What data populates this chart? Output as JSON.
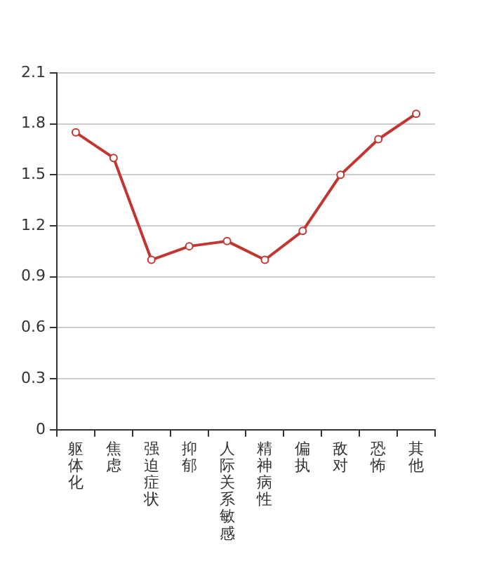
{
  "chart_data": {
    "type": "line",
    "categories": [
      "躯体化",
      "焦虑",
      "强迫症状",
      "抑郁",
      "人际关系敏感",
      "精神病性",
      "偏执",
      "敌对",
      "恐怖",
      "其他"
    ],
    "series": [
      {
        "color": "#c23531",
        "values": [
          1.75,
          1.6,
          1.0,
          1.08,
          1.11,
          1.0,
          1.17,
          1.5,
          1.71,
          1.86
        ]
      }
    ],
    "ylim": [
      0,
      2.1
    ],
    "yticks": [
      0,
      0.3,
      0.6,
      0.9,
      1.2,
      1.5,
      1.8,
      2.1
    ],
    "grid": "y",
    "marker": "circle",
    "line_style": "solid",
    "legend": false
  }
}
